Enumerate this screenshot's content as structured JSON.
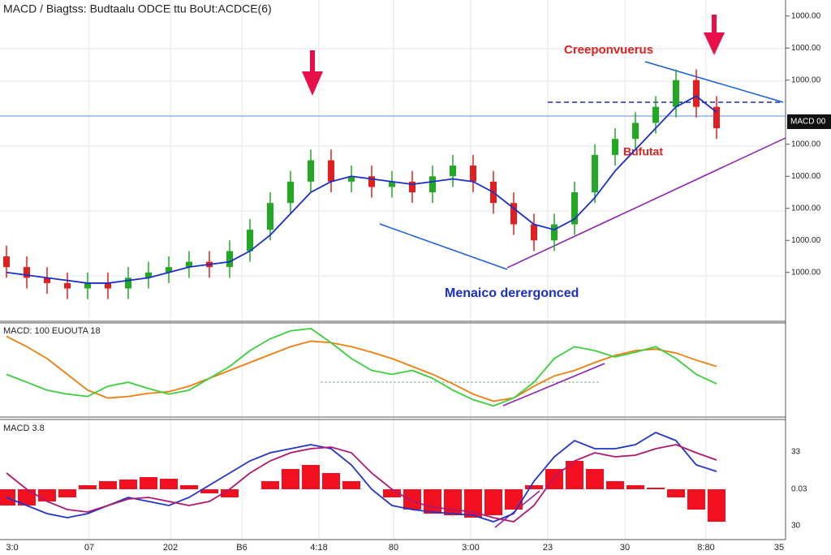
{
  "chart_data": [
    {
      "type": "candlestick",
      "title": "MACD / Biagtss: Budtaalu ODCE ttu BoUt:ACDCE(6)",
      "up_color": "#22a822",
      "down_color": "#e02020",
      "open": [
        52,
        50,
        48,
        47,
        46,
        47,
        46,
        48,
        49,
        50,
        51,
        50,
        53,
        57,
        62,
        66,
        70,
        66,
        67,
        65,
        66,
        64,
        67,
        69,
        66,
        62,
        58,
        55,
        58,
        64,
        71,
        74,
        77,
        80,
        85,
        80
      ],
      "high": [
        54,
        52,
        50,
        49,
        49,
        49,
        50,
        51,
        52,
        53,
        53,
        55,
        59,
        64,
        68,
        72,
        72,
        69,
        69,
        68,
        68,
        69,
        71,
        71,
        68,
        64,
        60,
        60,
        66,
        73,
        76,
        79,
        82,
        87,
        87,
        82
      ],
      "low": [
        48,
        46,
        45,
        44,
        44,
        44,
        44,
        46,
        47,
        48,
        48,
        48,
        51,
        55,
        60,
        64,
        64,
        64,
        63,
        63,
        62,
        62,
        65,
        64,
        60,
        56,
        53,
        53,
        56,
        62,
        69,
        72,
        75,
        78,
        78,
        74
      ],
      "close": [
        50,
        48,
        47,
        46,
        47,
        46,
        48,
        49,
        50,
        51,
        50,
        53,
        57,
        62,
        66,
        70,
        66,
        67,
        65,
        66,
        64,
        67,
        69,
        66,
        62,
        58,
        55,
        58,
        64,
        71,
        74,
        77,
        80,
        85,
        80,
        76
      ],
      "series": [
        {
          "color": "#1a2fc8",
          "values": [
            49,
            48.5,
            48,
            47.5,
            47,
            47,
            47.5,
            48,
            49,
            50,
            50.5,
            51,
            53,
            56,
            60,
            64,
            66,
            67,
            66.5,
            66,
            65.5,
            66,
            66.5,
            66,
            64,
            61,
            58,
            57,
            59,
            63,
            68,
            72,
            76,
            80,
            82,
            79
          ]
        }
      ],
      "ylim": [
        40,
        100
      ],
      "yticks": [
        {
          "value": 97,
          "label": "1000.00"
        },
        {
          "value": 91,
          "label": "1000.00"
        },
        {
          "value": 85,
          "label": "1000.00"
        },
        {
          "value": 73,
          "label": "1000.00"
        },
        {
          "value": 67,
          "label": "1000.00"
        },
        {
          "value": 61,
          "label": "1000.00"
        },
        {
          "value": 55,
          "label": "1000.00"
        },
        {
          "value": 49,
          "label": "1000.00"
        }
      ],
      "price_tag": "MACD 00",
      "annotations": [
        "Creeponvuerus",
        "Bufutat",
        "Menaico derergonced"
      ]
    },
    {
      "type": "line",
      "title": "MACD: 100 EUOUTA 18",
      "series": [
        {
          "color": "#f07d10",
          "values": [
            8.6,
            6,
            3,
            -1,
            -5,
            -7,
            -6.6,
            -5.8,
            -5.4,
            -4,
            -2,
            0,
            2,
            4,
            6,
            7.4,
            7,
            6,
            4.6,
            3,
            1,
            -1,
            -3.4,
            -6,
            -7.8,
            -7,
            -4,
            -1.4,
            0,
            2,
            3.8,
            5,
            5.4,
            4.4,
            2.6,
            1
          ]
        },
        {
          "color": "#3ccf3c",
          "values": [
            -1,
            -3,
            -5,
            -6,
            -6.6,
            -4,
            -3,
            -4.6,
            -6,
            -5,
            -2,
            1,
            5,
            8,
            10,
            10.6,
            7,
            3,
            0,
            -1,
            0,
            -2,
            -5,
            -7.4,
            -9,
            -7,
            -3,
            3,
            6,
            5,
            3.4,
            4.6,
            6,
            3,
            -1,
            -3.4
          ]
        }
      ],
      "ylim": [
        -11.4,
        11.6
      ]
    },
    {
      "type": "histogram",
      "title": "MACD 3.8",
      "color": "#f01020",
      "values": [
        -2,
        -2,
        -1.5,
        -1,
        0.5,
        1,
        1.2,
        1.5,
        1.3,
        0.5,
        -0.5,
        -1,
        0,
        1,
        2.5,
        3,
        2,
        1,
        0,
        -1,
        -2.5,
        -3,
        -3.2,
        -3.5,
        -3.2,
        -2.5,
        0.5,
        2.5,
        3.5,
        2.5,
        1,
        0.5,
        0.2,
        -1,
        -2.5,
        -4
      ],
      "series": [
        {
          "color": "#2336c8",
          "values": [
            -1,
            -2,
            -3,
            -3.5,
            -3,
            -2,
            -1,
            -1.5,
            -2,
            -1,
            0.5,
            2,
            3.5,
            4.5,
            5,
            5.5,
            5,
            3,
            0,
            -2,
            -2.5,
            -2.8,
            -3,
            -3.2,
            -4,
            -3,
            1,
            4,
            6,
            5,
            5,
            5.5,
            7,
            6,
            3,
            2.2
          ]
        },
        {
          "color": "#b01870",
          "values": [
            2,
            0,
            -1.5,
            -2.5,
            -2.8,
            -2,
            -1.2,
            -1,
            -1.5,
            -2,
            -1.5,
            0,
            2,
            3.5,
            4.5,
            5,
            5.2,
            4.5,
            2,
            0,
            -1.5,
            -2.2,
            -2.5,
            -2.8,
            -3.5,
            -4,
            -2,
            1.5,
            3.5,
            4.5,
            4,
            4.2,
            5,
            5.5,
            4.5,
            3.6
          ]
        }
      ],
      "ylim": [
        -6.2,
        8.5
      ],
      "axis_labels": [
        "33",
        "0.03",
        "30"
      ]
    }
  ],
  "x_axis_labels": [
    "3:0",
    "07",
    "202",
    "B6",
    "4:18",
    "80",
    "3:00",
    "23",
    "30",
    "8:80",
    "35"
  ]
}
